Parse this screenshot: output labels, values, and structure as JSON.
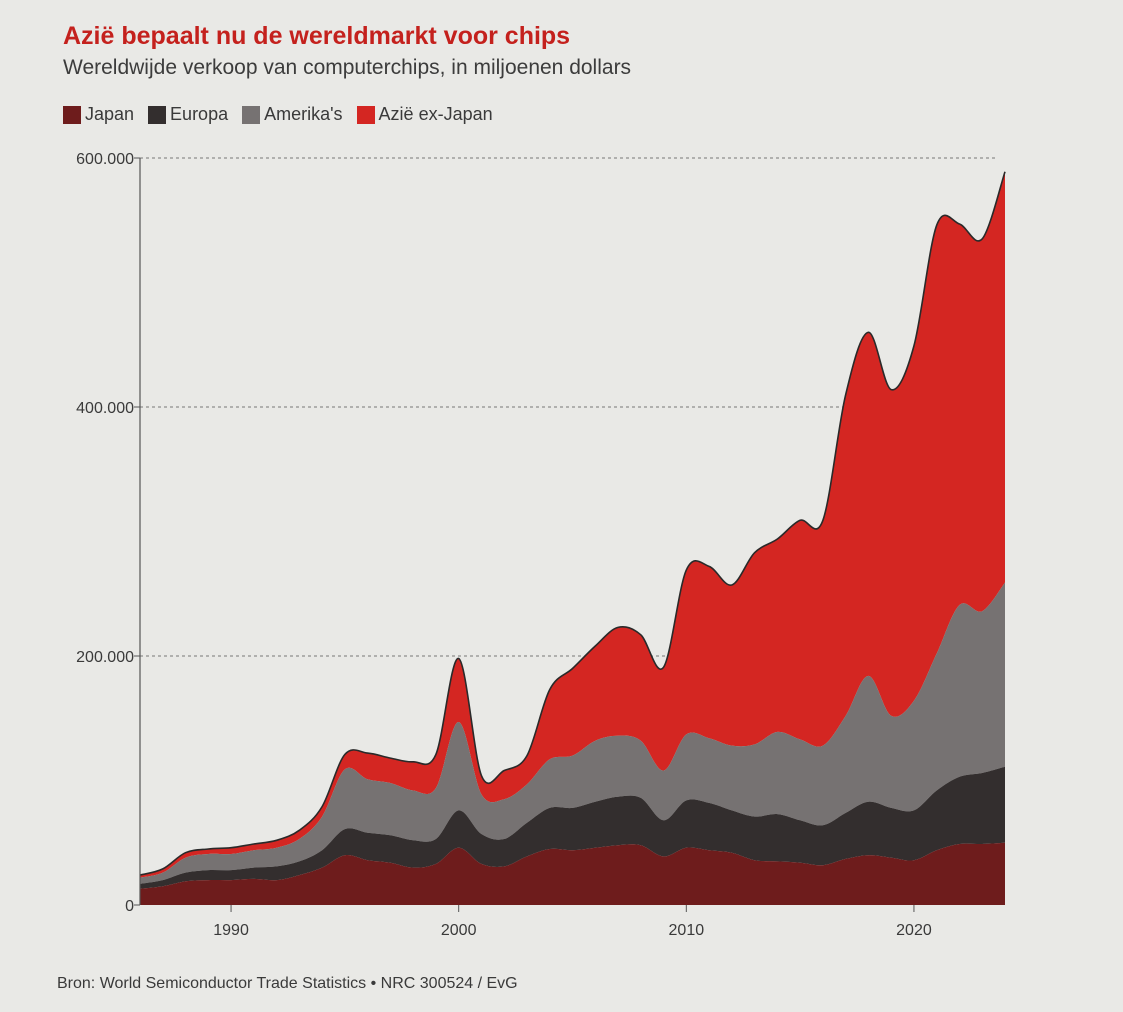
{
  "title": "Azië bepaalt nu de wereldmarkt voor chips",
  "subtitle": "Wereldwijde verkoop van computerchips, in miljoenen dollars",
  "source": "Bron: World Semiconductor Trade Statistics • NRC 300524 / EvG",
  "chart_data": {
    "type": "area",
    "stacked": true,
    "x": [
      1986,
      1987,
      1988,
      1989,
      1990,
      1991,
      1992,
      1993,
      1994,
      1995,
      1996,
      1997,
      1998,
      1999,
      2000,
      2001,
      2002,
      2003,
      2004,
      2005,
      2006,
      2007,
      2008,
      2009,
      2010,
      2011,
      2012,
      2013,
      2014,
      2015,
      2016,
      2017,
      2018,
      2019,
      2020,
      2021,
      2022,
      2023,
      2024
    ],
    "series": [
      {
        "name": "Japan",
        "color": "#6e1c1c",
        "values": [
          13,
          15,
          19,
          20,
          20,
          21,
          20,
          24,
          30,
          40,
          36,
          34,
          30,
          33,
          46,
          33,
          31,
          39,
          45,
          44,
          46,
          48,
          48,
          39,
          46,
          44,
          42,
          36,
          35,
          34,
          32,
          37,
          40,
          38,
          36,
          44,
          49,
          49,
          50
        ]
      },
      {
        "name": "Europa",
        "color": "#332e2e",
        "values": [
          4,
          5,
          7,
          8,
          8,
          9,
          11,
          11,
          14,
          21,
          22,
          22,
          22,
          20,
          30,
          24,
          22,
          27,
          33,
          34,
          37,
          39,
          38,
          29,
          38,
          38,
          34,
          35,
          38,
          34,
          32,
          37,
          43,
          40,
          40,
          48,
          54,
          57,
          61
        ]
      },
      {
        "name": "Amerika's",
        "color": "#767272",
        "values": [
          5,
          6,
          12,
          13,
          13,
          14,
          15,
          18,
          27,
          48,
          43,
          42,
          40,
          41,
          71,
          32,
          32,
          31,
          39,
          42,
          49,
          49,
          46,
          40,
          53,
          52,
          52,
          58,
          66,
          65,
          64,
          78,
          101,
          74,
          88,
          110,
          138,
          130,
          148
        ]
      },
      {
        "name": "Azië ex-Japan",
        "color": "#d42622",
        "values": [
          2,
          3,
          4,
          4,
          5,
          5,
          6,
          7,
          8,
          12,
          21,
          20,
          23,
          27,
          51,
          15,
          23,
          23,
          56,
          70,
          76,
          87,
          85,
          83,
          132,
          138,
          129,
          154,
          155,
          176,
          181,
          258,
          276,
          262,
          285,
          344,
          306,
          299,
          330
        ]
      }
    ],
    "xlabel": "",
    "ylabel": "",
    "xlim": [
      1986,
      2024
    ],
    "ylim": [
      0,
      600000
    ],
    "value_unit_note": "values in thousands of millions (×1000)",
    "y_ticks": [
      0,
      200000,
      400000,
      600000
    ],
    "y_tick_labels": [
      "0",
      "200.000",
      "400.000",
      "600.000"
    ],
    "x_ticks": [
      1990,
      2000,
      2010,
      2020
    ],
    "x_tick_labels": [
      "1990",
      "2000",
      "2010",
      "2020"
    ],
    "grid": "horizontal dashed",
    "legend_position": "top-left"
  }
}
